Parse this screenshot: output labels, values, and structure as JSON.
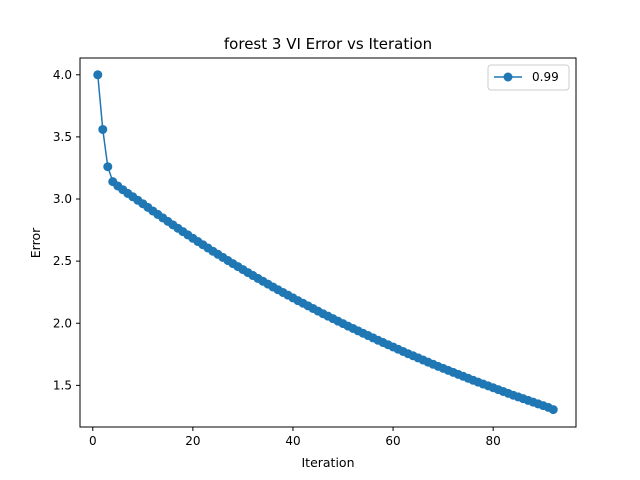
{
  "chart_data": {
    "type": "line",
    "title": "forest 3 VI Error vs Iteration",
    "xlabel": "Iteration",
    "ylabel": "Error",
    "xlim": [
      -2.55,
      96.55
    ],
    "ylim": [
      1.165,
      4.135
    ],
    "xticks": [
      0,
      20,
      40,
      60,
      80
    ],
    "xtick_labels": [
      "0",
      "20",
      "40",
      "60",
      "80"
    ],
    "yticks": [
      1.5,
      2.0,
      2.5,
      3.0,
      3.5,
      4.0
    ],
    "ytick_labels": [
      "1.5",
      "2.0",
      "2.5",
      "3.0",
      "3.5",
      "4.0"
    ],
    "grid": false,
    "legend_position": "top-right",
    "series": [
      {
        "name": "0.99",
        "color": "#1f77b4",
        "marker": "circle",
        "x_start": 1,
        "x_end": 92,
        "y": [
          4.0,
          3.56,
          3.26,
          3.14,
          3.105,
          3.075,
          3.045,
          3.018,
          2.99,
          2.962,
          2.933,
          2.904,
          2.876,
          2.848,
          2.82,
          2.792,
          2.765,
          2.738,
          2.711,
          2.684,
          2.658,
          2.632,
          2.606,
          2.58,
          2.555,
          2.53,
          2.505,
          2.48,
          2.456,
          2.432,
          2.408,
          2.384,
          2.361,
          2.338,
          2.315,
          2.292,
          2.27,
          2.248,
          2.226,
          2.204,
          2.182,
          2.161,
          2.14,
          2.119,
          2.098,
          2.077,
          2.057,
          2.037,
          2.017,
          1.997,
          1.977,
          1.958,
          1.939,
          1.92,
          1.901,
          1.882,
          1.863,
          1.845,
          1.827,
          1.809,
          1.791,
          1.773,
          1.755,
          1.738,
          1.721,
          1.704,
          1.687,
          1.67,
          1.653,
          1.637,
          1.621,
          1.605,
          1.589,
          1.573,
          1.557,
          1.541,
          1.526,
          1.511,
          1.496,
          1.481,
          1.466,
          1.451,
          1.436,
          1.421,
          1.407,
          1.393,
          1.379,
          1.365,
          1.351,
          1.337,
          1.323,
          1.305
        ]
      }
    ]
  }
}
